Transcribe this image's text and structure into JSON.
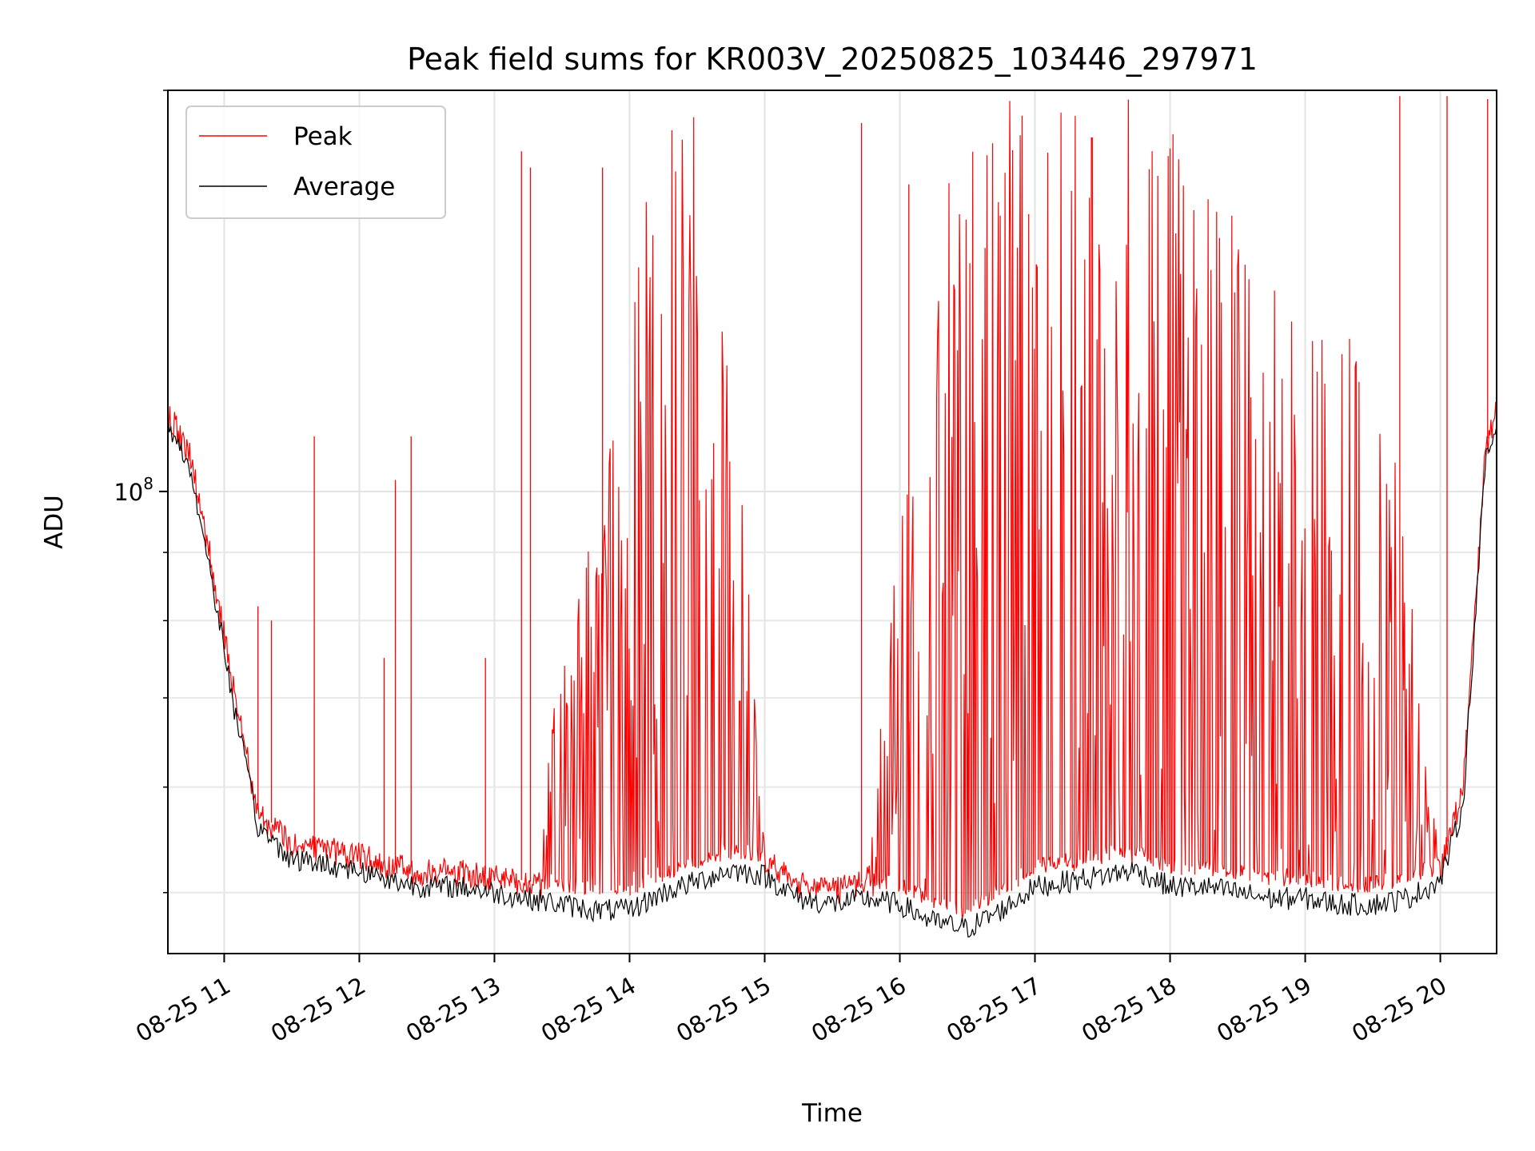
{
  "chart_data": {
    "type": "line",
    "title": "Peak field sums for KR003V_20250825_103446_297971",
    "xlabel": "Time",
    "ylabel": "ADU",
    "y_scale": "log",
    "ylim": [
      45000000,
      200000000
    ],
    "xlim": [
      "2025-08-25 10:35",
      "2025-08-25 20:25"
    ],
    "x_tick_labels": [
      "08-25 11",
      "08-25 12",
      "08-25 13",
      "08-25 14",
      "08-25 15",
      "08-25 16",
      "08-25 17",
      "08-25 18",
      "08-25 19",
      "08-25 20"
    ],
    "x_tick_values": [
      "2025-08-25 11:00",
      "2025-08-25 12:00",
      "2025-08-25 13:00",
      "2025-08-25 14:00",
      "2025-08-25 15:00",
      "2025-08-25 16:00",
      "2025-08-25 17:00",
      "2025-08-25 18:00",
      "2025-08-25 19:00",
      "2025-08-25 20:00"
    ],
    "y_tick_labels": [
      {
        "base": "10",
        "exp": "8",
        "value": 100000000
      }
    ],
    "y_minor_ticks": [
      50000000,
      60000000,
      70000000,
      80000000,
      90000000,
      200000000
    ],
    "grid": true,
    "legend_position": "top-left",
    "series": [
      {
        "name": "Peak",
        "color": "#ff0000",
        "x": [
          "2025-08-25 10:35",
          "2025-08-25 10:45",
          "2025-08-25 10:55",
          "2025-08-25 11:05",
          "2025-08-25 11:15",
          "2025-08-25 11:30",
          "2025-08-25 11:45",
          "2025-08-25 12:00",
          "2025-08-25 12:15",
          "2025-08-25 12:30",
          "2025-08-25 12:45",
          "2025-08-25 13:00",
          "2025-08-25 13:15",
          "2025-08-25 13:30",
          "2025-08-25 13:45",
          "2025-08-25 14:00",
          "2025-08-25 14:15",
          "2025-08-25 14:30",
          "2025-08-25 14:45",
          "2025-08-25 15:00",
          "2025-08-25 15:15",
          "2025-08-25 15:30",
          "2025-08-25 15:45",
          "2025-08-25 16:00",
          "2025-08-25 16:15",
          "2025-08-25 16:30",
          "2025-08-25 16:45",
          "2025-08-25 17:00",
          "2025-08-25 17:15",
          "2025-08-25 17:30",
          "2025-08-25 17:45",
          "2025-08-25 18:00",
          "2025-08-25 18:15",
          "2025-08-25 18:30",
          "2025-08-25 18:45",
          "2025-08-25 19:00",
          "2025-08-25 19:15",
          "2025-08-25 19:30",
          "2025-08-25 19:45",
          "2025-08-25 20:00",
          "2025-08-25 20:10",
          "2025-08-25 20:20",
          "2025-08-25 20:25"
        ],
        "values": [
          112000000,
          106000000,
          87000000,
          70000000,
          58000000,
          54000000,
          55000000,
          53000000,
          52000000,
          52000000,
          51500000,
          51000000,
          52000000,
          75000000,
          95000000,
          150000000,
          200000000,
          190000000,
          140000000,
          54000000,
          51000000,
          51500000,
          52000000,
          95000000,
          160000000,
          200000000,
          200000000,
          200000000,
          195000000,
          200000000,
          200000000,
          190000000,
          170000000,
          160000000,
          150000000,
          130000000,
          140000000,
          120000000,
          100000000,
          52000000,
          60000000,
          110000000,
          115000000
        ],
        "spikes": [
          {
            "x": "2025-08-25 11:15",
            "y": 82000000
          },
          {
            "x": "2025-08-25 11:21",
            "y": 80000000
          },
          {
            "x": "2025-08-25 11:40",
            "y": 110000000
          },
          {
            "x": "2025-08-25 12:23",
            "y": 110000000
          },
          {
            "x": "2025-08-25 12:16",
            "y": 102000000
          },
          {
            "x": "2025-08-25 12:11",
            "y": 75000000
          },
          {
            "x": "2025-08-25 12:56",
            "y": 75000000
          },
          {
            "x": "2025-08-25 13:12",
            "y": 180000000
          },
          {
            "x": "2025-08-25 13:16",
            "y": 175000000
          },
          {
            "x": "2025-08-25 13:48",
            "y": 175000000
          },
          {
            "x": "2025-08-25 15:43",
            "y": 189000000
          },
          {
            "x": "2025-08-25 16:04",
            "y": 170000000
          },
          {
            "x": "2025-08-25 19:42",
            "y": 198000000
          },
          {
            "x": "2025-08-25 20:03",
            "y": 198000000
          },
          {
            "x": "2025-08-25 20:21",
            "y": 197000000
          }
        ]
      },
      {
        "name": "Average",
        "color": "#000000",
        "x": [
          "2025-08-25 10:35",
          "2025-08-25 10:45",
          "2025-08-25 10:55",
          "2025-08-25 11:05",
          "2025-08-25 11:15",
          "2025-08-25 11:30",
          "2025-08-25 11:45",
          "2025-08-25 12:00",
          "2025-08-25 12:15",
          "2025-08-25 12:30",
          "2025-08-25 12:45",
          "2025-08-25 13:00",
          "2025-08-25 13:15",
          "2025-08-25 13:30",
          "2025-08-25 13:45",
          "2025-08-25 14:00",
          "2025-08-25 14:15",
          "2025-08-25 14:30",
          "2025-08-25 14:45",
          "2025-08-25 15:00",
          "2025-08-25 15:15",
          "2025-08-25 15:30",
          "2025-08-25 15:45",
          "2025-08-25 16:00",
          "2025-08-25 16:15",
          "2025-08-25 16:30",
          "2025-08-25 16:45",
          "2025-08-25 17:00",
          "2025-08-25 17:15",
          "2025-08-25 17:30",
          "2025-08-25 17:45",
          "2025-08-25 18:00",
          "2025-08-25 18:15",
          "2025-08-25 18:30",
          "2025-08-25 18:45",
          "2025-08-25 19:00",
          "2025-08-25 19:15",
          "2025-08-25 19:30",
          "2025-08-25 19:45",
          "2025-08-25 20:00",
          "2025-08-25 20:10",
          "2025-08-25 20:20",
          "2025-08-25 20:25"
        ],
        "values": [
          112000000,
          104000000,
          85000000,
          68000000,
          56000000,
          53000000,
          52500000,
          52000000,
          51000000,
          50500000,
          50500000,
          50000000,
          49500000,
          49000000,
          48500000,
          48500000,
          50000000,
          51000000,
          52000000,
          51500000,
          49500000,
          49000000,
          49500000,
          49000000,
          47500000,
          47000000,
          48500000,
          50500000,
          51000000,
          51500000,
          52000000,
          50500000,
          50500000,
          50000000,
          49500000,
          49500000,
          49000000,
          49000000,
          49500000,
          51000000,
          58000000,
          105000000,
          112000000
        ]
      }
    ]
  }
}
